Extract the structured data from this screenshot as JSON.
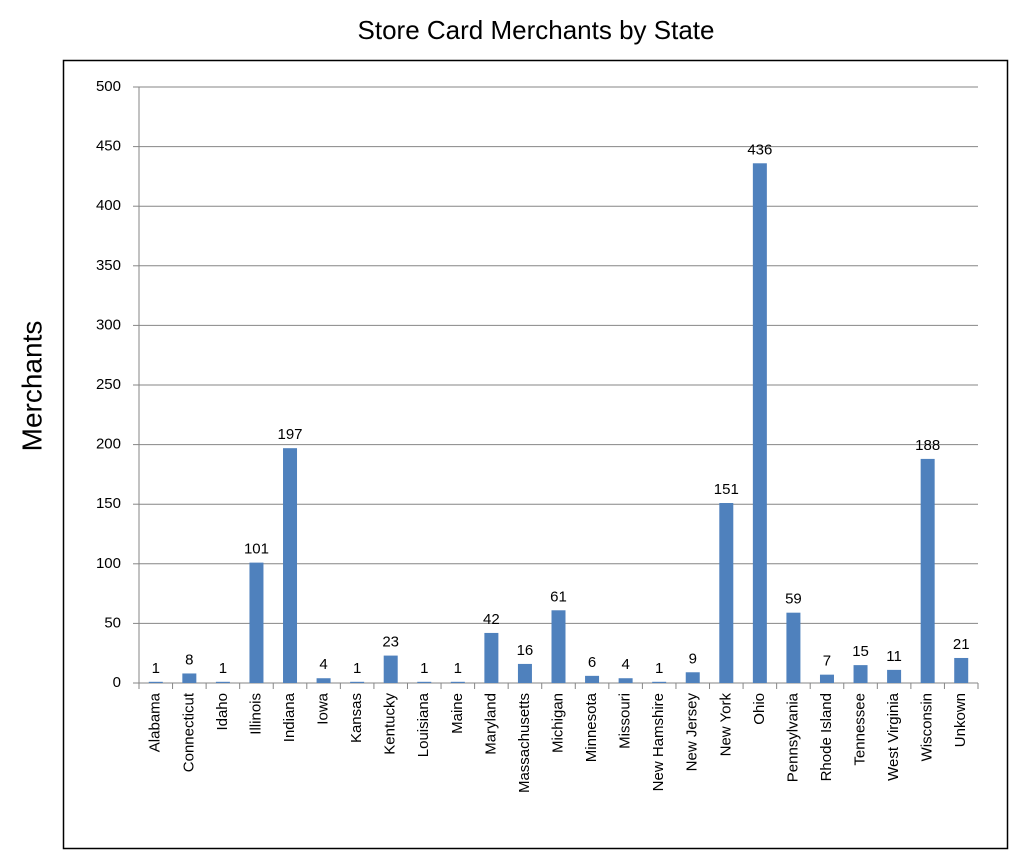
{
  "chart_data": {
    "type": "bar",
    "title": "Store Card Merchants by State",
    "y_label": "Merchants",
    "categories": [
      "Alabama",
      "Connecticut",
      "Idaho",
      "Illinois",
      "Indiana",
      "Iowa",
      "Kansas",
      "Kentucky",
      "Louisiana",
      "Maine",
      "Maryland",
      "Massachusetts",
      "Michigan",
      "Minnesota",
      "Missouri",
      "New Hamshire",
      "New Jersey",
      "New York",
      "Ohio",
      "Pennsylvania",
      "Rhode Island",
      "Tennessee",
      "West Virginia",
      "Wisconsin",
      "Unkown"
    ],
    "values": [
      1,
      8,
      1,
      101,
      197,
      4,
      1,
      23,
      1,
      1,
      42,
      16,
      61,
      6,
      4,
      1,
      9,
      151,
      436,
      59,
      7,
      15,
      11,
      188,
      21
    ],
    "color": "#4f81bd",
    "ylim": [
      0,
      500
    ],
    "yticks": [
      0,
      50,
      100,
      150,
      200,
      250,
      300,
      350,
      400,
      450,
      500
    ],
    "grid": true
  }
}
